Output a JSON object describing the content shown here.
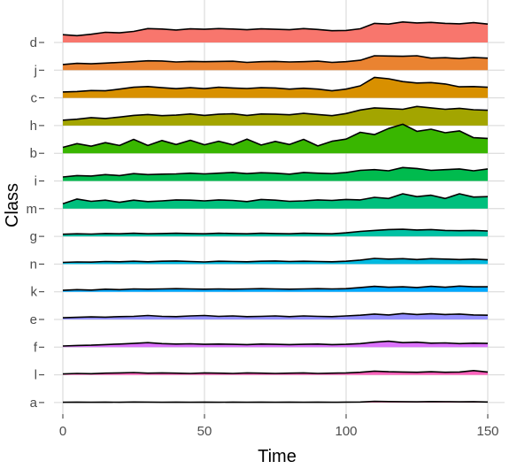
{
  "chart_data": {
    "type": "area",
    "subtype": "ridgeline",
    "title": "",
    "xlabel": "Time",
    "ylabel": "Class",
    "xlim": [
      0,
      150
    ],
    "xticks": [
      0,
      50,
      100,
      150
    ],
    "grid": true,
    "legend": "none",
    "outline_color": "#000000",
    "categories": [
      "d",
      "j",
      "c",
      "h",
      "b",
      "i",
      "m",
      "g",
      "n",
      "k",
      "e",
      "f",
      "l",
      "a"
    ],
    "x": [
      0,
      5,
      10,
      15,
      20,
      25,
      30,
      35,
      40,
      45,
      50,
      55,
      60,
      65,
      70,
      75,
      80,
      85,
      90,
      95,
      100,
      105,
      110,
      115,
      120,
      125,
      130,
      135,
      140,
      145,
      150
    ],
    "series": [
      {
        "name": "d",
        "color": "#F8766D",
        "values": [
          0.55,
          0.48,
          0.58,
          0.72,
          0.68,
          0.78,
          0.98,
          0.95,
          0.88,
          0.96,
          0.93,
          0.98,
          0.95,
          0.9,
          0.96,
          0.93,
          0.9,
          0.98,
          0.92,
          0.83,
          0.85,
          0.97,
          1.35,
          1.3,
          1.45,
          1.38,
          1.42,
          1.35,
          1.32,
          1.4,
          1.3
        ]
      },
      {
        "name": "j",
        "color": "#EA8331",
        "values": [
          0.4,
          0.48,
          0.45,
          0.5,
          0.55,
          0.6,
          0.66,
          0.65,
          0.58,
          0.62,
          0.6,
          0.62,
          0.63,
          0.55,
          0.6,
          0.62,
          0.58,
          0.6,
          0.64,
          0.55,
          0.6,
          0.7,
          1.02,
          1.0,
          0.98,
          1.02,
          0.85,
          0.88,
          0.82,
          0.9,
          0.85
        ]
      },
      {
        "name": "c",
        "color": "#D89000",
        "values": [
          0.42,
          0.45,
          0.52,
          0.5,
          0.62,
          0.75,
          0.8,
          0.72,
          0.65,
          0.72,
          0.65,
          0.75,
          0.7,
          0.66,
          0.72,
          0.7,
          0.62,
          0.68,
          0.62,
          0.5,
          0.62,
          0.85,
          1.45,
          1.35,
          1.15,
          1.05,
          1.08,
          0.98,
          0.78,
          0.8,
          0.75
        ]
      },
      {
        "name": "h",
        "color": "#A3A500",
        "values": [
          0.38,
          0.45,
          0.56,
          0.5,
          0.6,
          0.72,
          0.78,
          0.7,
          0.74,
          0.82,
          0.72,
          0.8,
          0.83,
          0.72,
          0.82,
          0.8,
          0.76,
          0.86,
          0.78,
          0.7,
          0.85,
          1.1,
          1.25,
          1.2,
          1.15,
          1.35,
          1.25,
          1.15,
          1.22,
          1.12,
          1.08
        ]
      },
      {
        "name": "b",
        "color": "#39B600",
        "values": [
          0.42,
          0.68,
          0.5,
          0.75,
          0.55,
          0.98,
          0.55,
          0.9,
          0.62,
          0.92,
          0.6,
          0.85,
          0.6,
          1.0,
          0.58,
          0.84,
          0.62,
          0.98,
          0.52,
          0.85,
          1.0,
          1.48,
          1.32,
          1.75,
          2.05,
          1.55,
          1.7,
          1.45,
          1.58,
          1.1,
          1.05
        ]
      },
      {
        "name": "i",
        "color": "#00BB4E",
        "values": [
          0.28,
          0.38,
          0.35,
          0.45,
          0.38,
          0.52,
          0.45,
          0.48,
          0.5,
          0.55,
          0.5,
          0.55,
          0.6,
          0.52,
          0.58,
          0.55,
          0.48,
          0.6,
          0.55,
          0.52,
          0.6,
          0.75,
          0.8,
          0.72,
          0.95,
          0.88,
          0.75,
          0.8,
          0.85,
          0.72,
          0.85
        ]
      },
      {
        "name": "m",
        "color": "#00BF7D",
        "values": [
          0.35,
          0.68,
          0.52,
          0.6,
          0.45,
          0.6,
          0.5,
          0.55,
          0.62,
          0.6,
          0.55,
          0.62,
          0.58,
          0.5,
          0.65,
          0.6,
          0.52,
          0.55,
          0.62,
          0.58,
          0.65,
          0.62,
          0.8,
          0.72,
          1.05,
          0.85,
          0.95,
          0.72,
          1.05,
          0.82,
          0.85
        ]
      },
      {
        "name": "g",
        "color": "#00C1A3",
        "values": [
          0.15,
          0.18,
          0.16,
          0.2,
          0.18,
          0.22,
          0.18,
          0.2,
          0.22,
          0.2,
          0.18,
          0.22,
          0.2,
          0.18,
          0.22,
          0.2,
          0.18,
          0.22,
          0.2,
          0.18,
          0.25,
          0.35,
          0.42,
          0.48,
          0.5,
          0.45,
          0.48,
          0.42,
          0.4,
          0.42,
          0.38
        ]
      },
      {
        "name": "n",
        "color": "#00BAE0",
        "values": [
          0.12,
          0.15,
          0.14,
          0.18,
          0.16,
          0.2,
          0.16,
          0.2,
          0.22,
          0.18,
          0.15,
          0.2,
          0.18,
          0.16,
          0.2,
          0.22,
          0.18,
          0.2,
          0.18,
          0.16,
          0.2,
          0.28,
          0.4,
          0.35,
          0.38,
          0.32,
          0.38,
          0.35,
          0.32,
          0.35,
          0.3
        ]
      },
      {
        "name": "k",
        "color": "#00A9FF",
        "values": [
          0.1,
          0.15,
          0.12,
          0.18,
          0.15,
          0.2,
          0.18,
          0.2,
          0.22,
          0.2,
          0.18,
          0.2,
          0.18,
          0.2,
          0.22,
          0.2,
          0.18,
          0.2,
          0.22,
          0.2,
          0.22,
          0.3,
          0.38,
          0.32,
          0.35,
          0.3,
          0.38,
          0.32,
          0.4,
          0.35,
          0.35
        ]
      },
      {
        "name": "e",
        "color": "#9590FF",
        "values": [
          0.12,
          0.15,
          0.18,
          0.16,
          0.2,
          0.22,
          0.28,
          0.22,
          0.2,
          0.25,
          0.28,
          0.22,
          0.25,
          0.2,
          0.22,
          0.25,
          0.2,
          0.25,
          0.22,
          0.2,
          0.25,
          0.3,
          0.38,
          0.32,
          0.42,
          0.35,
          0.4,
          0.35,
          0.38,
          0.32,
          0.3
        ]
      },
      {
        "name": "f",
        "color": "#DB72FB",
        "values": [
          0.08,
          0.12,
          0.14,
          0.18,
          0.22,
          0.26,
          0.32,
          0.25,
          0.22,
          0.24,
          0.2,
          0.22,
          0.2,
          0.18,
          0.22,
          0.2,
          0.18,
          0.2,
          0.22,
          0.18,
          0.2,
          0.25,
          0.35,
          0.42,
          0.32,
          0.35,
          0.28,
          0.3,
          0.25,
          0.28,
          0.26
        ]
      },
      {
        "name": "l",
        "color": "#FF62BC",
        "values": [
          0.06,
          0.1,
          0.08,
          0.12,
          0.14,
          0.16,
          0.12,
          0.14,
          0.12,
          0.1,
          0.14,
          0.12,
          0.1,
          0.14,
          0.12,
          0.1,
          0.12,
          0.14,
          0.1,
          0.12,
          0.14,
          0.18,
          0.26,
          0.22,
          0.2,
          0.18,
          0.22,
          0.18,
          0.2,
          0.3,
          0.2
        ]
      },
      {
        "name": "a",
        "color": "#FF65A9",
        "values": [
          0.02,
          0.03,
          0.02,
          0.03,
          0.02,
          0.04,
          0.03,
          0.02,
          0.03,
          0.02,
          0.03,
          0.02,
          0.03,
          0.02,
          0.03,
          0.02,
          0.03,
          0.02,
          0.03,
          0.02,
          0.03,
          0.04,
          0.08,
          0.07,
          0.06,
          0.05,
          0.07,
          0.06,
          0.05,
          0.06,
          0.04
        ]
      }
    ]
  }
}
